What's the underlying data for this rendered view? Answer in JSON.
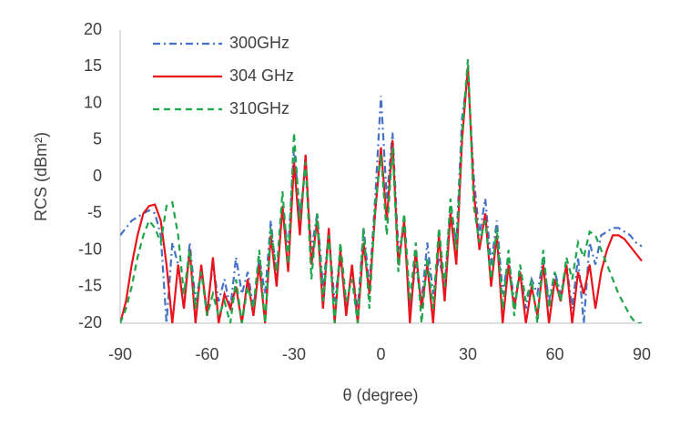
{
  "chart_data": {
    "type": "line",
    "xlabel": "θ (degree)",
    "ylabel": "RCS (dBm²)",
    "xlim": [
      -90,
      90
    ],
    "xticks": [
      -90,
      -60,
      -30,
      0,
      30,
      60,
      90
    ],
    "ylim": [
      -20,
      20
    ],
    "yticks": [
      -20,
      -15,
      -10,
      -5,
      0,
      5,
      10,
      15,
      20
    ],
    "legend": "upper left",
    "x": [
      -90,
      -88,
      -86,
      -84,
      -82,
      -80,
      -78,
      -76,
      -74,
      -72,
      -70,
      -68,
      -66,
      -64,
      -62,
      -60,
      -58,
      -56,
      -54,
      -52,
      -50,
      -48,
      -46,
      -44,
      -42,
      -40,
      -38,
      -36,
      -34,
      -32,
      -30,
      -28,
      -26,
      -24,
      -22,
      -20,
      -18,
      -16,
      -14,
      -12,
      -10,
      -8,
      -6,
      -4,
      -2,
      0,
      2,
      4,
      6,
      8,
      10,
      12,
      14,
      16,
      18,
      20,
      22,
      24,
      26,
      28,
      30,
      32,
      34,
      36,
      38,
      40,
      42,
      44,
      46,
      48,
      50,
      52,
      54,
      56,
      58,
      60,
      62,
      64,
      66,
      68,
      70,
      72,
      74,
      76,
      78,
      80,
      82,
      84,
      86,
      88,
      90
    ],
    "series": [
      {
        "name": "300GHz",
        "color": "#4472c4",
        "dash": "dashdot",
        "values": [
          -8,
          -7,
          -6,
          -5.5,
          -5,
          -4.6,
          -5,
          -8,
          -20,
          -9,
          -12,
          -18,
          -9,
          -17,
          -13,
          -18,
          -12,
          -17,
          -14,
          -18,
          -11,
          -16,
          -13,
          -18,
          -11,
          -16,
          -6,
          -14,
          -4,
          -10,
          4,
          -5,
          1,
          -10,
          -5,
          -15,
          -8,
          -17,
          -11,
          -18,
          -13,
          -18,
          -7,
          -15,
          -3,
          11,
          -3,
          6,
          -10,
          -7,
          -18,
          -12,
          -17,
          -9,
          -16,
          -11,
          -15,
          -4,
          -9,
          8,
          14,
          0,
          -8,
          -3,
          -12,
          -6,
          -16,
          -11,
          -17,
          -13,
          -18,
          -14,
          -16,
          -11,
          -17,
          -13,
          -16,
          -12,
          -18,
          -11,
          -20,
          -9,
          -12,
          -8,
          -7.5,
          -7,
          -7,
          -7.5,
          -8,
          -9,
          -9.5
        ]
      },
      {
        "name": "304 GHz",
        "color": "#e8131b",
        "dash": "solid",
        "values": [
          -20,
          -17,
          -12,
          -8,
          -5,
          -4,
          -3.8,
          -6,
          -12,
          -20,
          -12,
          -18,
          -10,
          -20,
          -12,
          -19,
          -11,
          -20,
          -16,
          -18,
          -15,
          -20,
          -14,
          -19,
          -12,
          -20,
          -8,
          -15,
          -4,
          -13,
          2,
          -8,
          3,
          -12,
          -6,
          -18,
          -7,
          -20,
          -10,
          -19,
          -12,
          -20,
          -9,
          -16,
          -5,
          4,
          -6,
          5,
          -12,
          -6,
          -20,
          -10,
          -18,
          -12,
          -20,
          -8,
          -17,
          -5,
          -12,
          5,
          15,
          -2,
          -10,
          -5,
          -15,
          -8,
          -20,
          -12,
          -18,
          -13,
          -20,
          -15,
          -19,
          -12,
          -20,
          -14,
          -17,
          -12,
          -20,
          -13,
          -16,
          -12,
          -18,
          -13,
          -10,
          -8,
          -8,
          -8.5,
          -9.5,
          -10.5,
          -11.5
        ]
      },
      {
        "name": "310GHz",
        "color": "#1ea64a",
        "dash": "dashed",
        "values": [
          -20,
          -18,
          -15,
          -11,
          -8,
          -6,
          -7,
          -9,
          -4,
          -3.5,
          -8,
          -16,
          -10,
          -18,
          -13,
          -19,
          -16,
          -19,
          -17,
          -20,
          -14,
          -20,
          -15,
          -18,
          -10,
          -20,
          -7,
          -13,
          -2,
          -12,
          6,
          -6,
          2,
          -14,
          -5,
          -17,
          -8,
          -20,
          -9,
          -17,
          -14,
          -20,
          -7,
          -18,
          -4,
          3,
          -8,
          4,
          -13,
          -5,
          -17,
          -9,
          -20,
          -11,
          -18,
          -7,
          -15,
          -3,
          -10,
          6,
          16,
          -4,
          -9,
          -6,
          -14,
          -7,
          -18,
          -10,
          -19,
          -12,
          -17,
          -14,
          -20,
          -10,
          -18,
          -13,
          -17,
          -11,
          -14,
          -9,
          -11,
          -7.5,
          -8,
          -10,
          -12,
          -14,
          -16,
          -17.5,
          -19,
          -20,
          -20
        ]
      }
    ]
  }
}
